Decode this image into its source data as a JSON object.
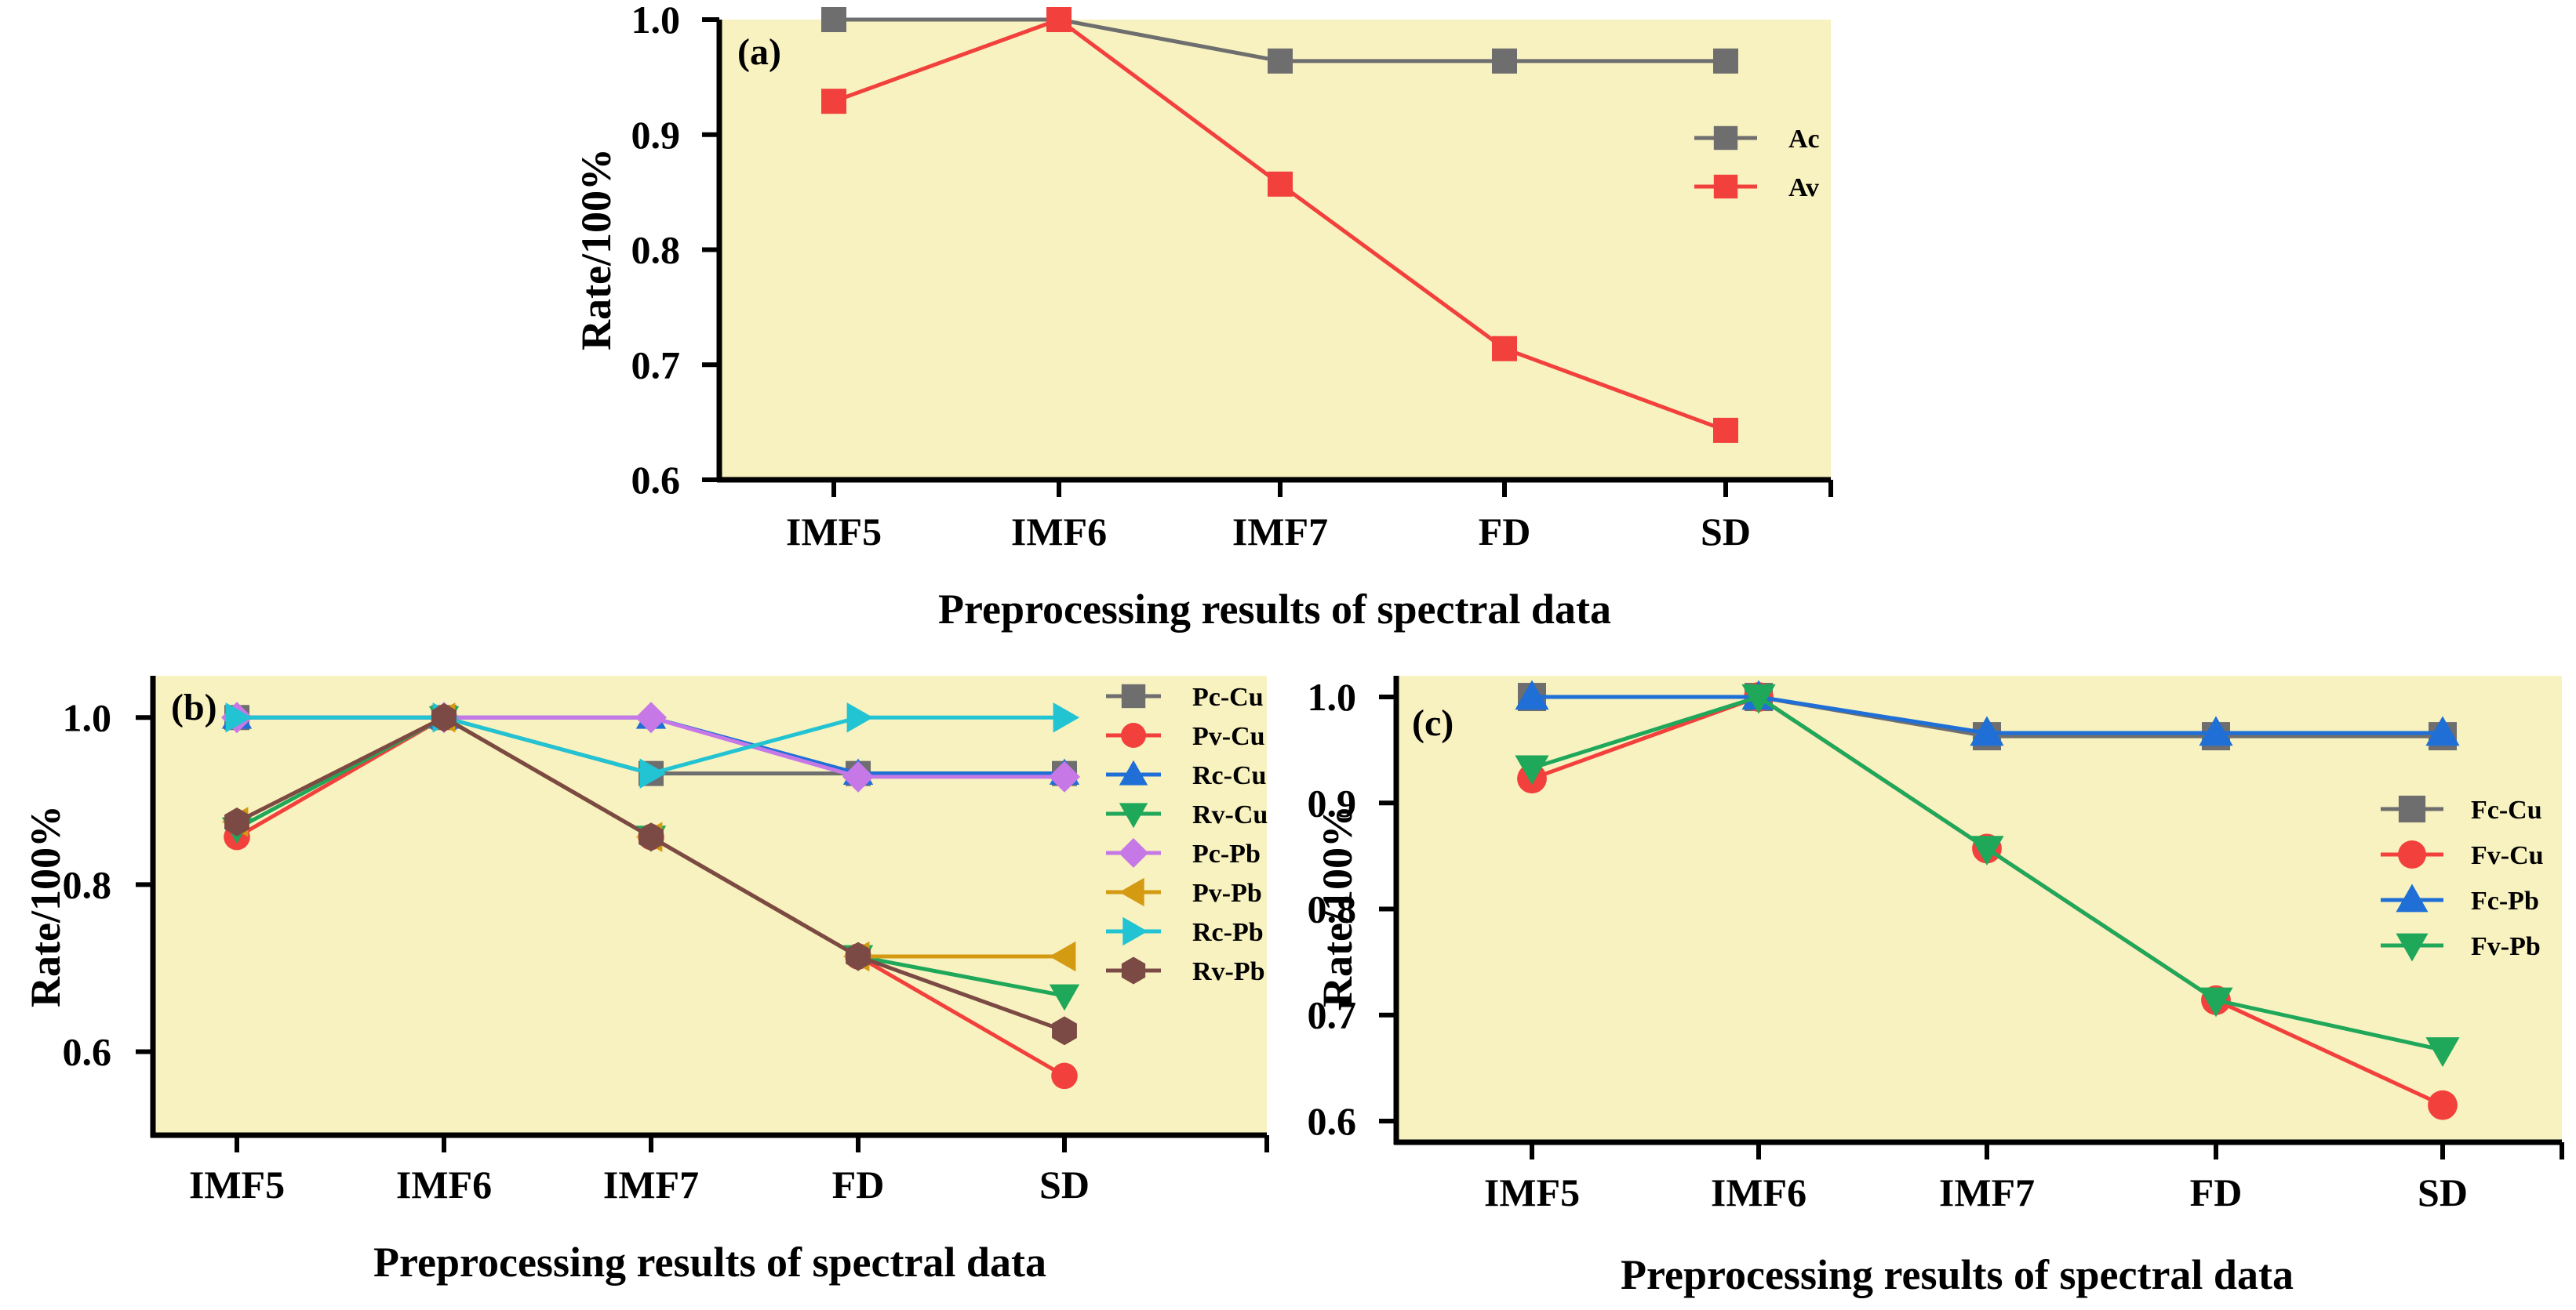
{
  "figure": {
    "background": "#ffffff",
    "plot_background": "#f8f2c0"
  },
  "chart_data": [
    {
      "id": "a",
      "type": "line",
      "panel_label": "(a)",
      "title": "",
      "xlabel": "Preprocessing results of spectral data",
      "ylabel": "Rate/100%",
      "categories": [
        "IMF5",
        "IMF6",
        "IMF7",
        "FD",
        "SD"
      ],
      "ylim": [
        0.6,
        1.0
      ],
      "yticks": [
        0.6,
        0.7,
        0.8,
        0.9,
        1.0
      ],
      "ytick_labels": [
        "0.6",
        "0.7",
        "0.8",
        "0.9",
        "1.0"
      ],
      "legend_position": "right",
      "series": [
        {
          "name": "Ac",
          "color": "#6e6e6e",
          "marker": "square",
          "values": [
            1.0,
            1.0,
            0.964,
            0.964,
            0.964
          ]
        },
        {
          "name": "Av",
          "color": "#f2403c",
          "marker": "square",
          "values": [
            0.929,
            1.0,
            0.857,
            0.714,
            0.643
          ]
        }
      ]
    },
    {
      "id": "b",
      "type": "line",
      "panel_label": "(b)",
      "title": "",
      "xlabel": "Preprocessing results of spectral data",
      "ylabel": "Rate/100%",
      "categories": [
        "IMF5",
        "IMF6",
        "IMF7",
        "FD",
        "SD"
      ],
      "ylim": [
        0.5,
        1.05
      ],
      "yticks": [
        0.6,
        0.8,
        1.0
      ],
      "ytick_labels": [
        "0.6",
        "0.8",
        "1.0"
      ],
      "legend_position": "top-right",
      "series": [
        {
          "name": "Pc-Cu",
          "color": "#6e6e6e",
          "marker": "square",
          "values": [
            1.0,
            1.0,
            0.933,
            0.933,
            0.933
          ]
        },
        {
          "name": "Pv-Cu",
          "color": "#f2403c",
          "marker": "circle",
          "values": [
            0.857,
            1.0,
            0.857,
            0.714,
            0.571
          ]
        },
        {
          "name": "Rc-Cu",
          "color": "#1f6fd6",
          "marker": "triangle-up",
          "values": [
            1.0,
            1.0,
            1.0,
            0.933,
            0.933
          ]
        },
        {
          "name": "Rv-Cu",
          "color": "#1fa75a",
          "marker": "triangle-down",
          "values": [
            0.867,
            1.0,
            0.857,
            0.714,
            0.667
          ]
        },
        {
          "name": "Pc-Pb",
          "color": "#c678e6",
          "marker": "diamond",
          "values": [
            1.0,
            1.0,
            1.0,
            0.929,
            0.929
          ]
        },
        {
          "name": "Pv-Pb",
          "color": "#d49a12",
          "marker": "triangle-left",
          "values": [
            0.875,
            1.0,
            0.857,
            0.714,
            0.714
          ]
        },
        {
          "name": "Rc-Pb",
          "color": "#22c3d2",
          "marker": "triangle-right",
          "values": [
            1.0,
            1.0,
            0.933,
            1.0,
            1.0
          ]
        },
        {
          "name": "Rv-Pb",
          "color": "#7b4a44",
          "marker": "hexagon",
          "values": [
            0.875,
            1.0,
            0.857,
            0.714,
            0.625
          ]
        }
      ]
    },
    {
      "id": "c",
      "type": "line",
      "panel_label": "(c)",
      "title": "",
      "xlabel": "Preprocessing results of spectral data",
      "ylabel": "Rate/100%",
      "categories": [
        "IMF5",
        "IMF6",
        "IMF7",
        "FD",
        "SD"
      ],
      "ylim": [
        0.58,
        1.02
      ],
      "yticks": [
        0.6,
        0.7,
        0.8,
        0.9,
        1.0
      ],
      "ytick_labels": [
        "0.6",
        "0.7",
        "0.8",
        "0.9",
        "1.0"
      ],
      "legend_position": "right",
      "series": [
        {
          "name": "Fc-Cu",
          "color": "#6e6e6e",
          "marker": "square",
          "values": [
            1.0,
            1.0,
            0.963,
            0.963,
            0.963
          ]
        },
        {
          "name": "Fv-Cu",
          "color": "#f2403c",
          "marker": "circle",
          "values": [
            0.923,
            1.0,
            0.857,
            0.714,
            0.615
          ]
        },
        {
          "name": "Fc-Pb",
          "color": "#1f6fd6",
          "marker": "triangle-up",
          "values": [
            1.0,
            1.0,
            0.966,
            0.966,
            0.966
          ]
        },
        {
          "name": "Fv-Pb",
          "color": "#1fa75a",
          "marker": "triangle-down",
          "values": [
            0.933,
            1.0,
            0.857,
            0.714,
            0.667
          ]
        }
      ]
    }
  ]
}
